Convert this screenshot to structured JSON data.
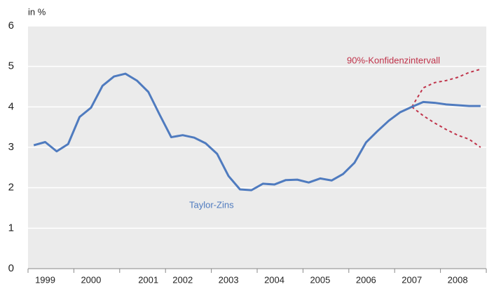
{
  "chart_data": {
    "type": "line",
    "y_unit_label": "in %",
    "categories": [
      null,
      "1999",
      null,
      null,
      null,
      "2000",
      null,
      null,
      null,
      null,
      "2001",
      null,
      null,
      "2002",
      null,
      null,
      null,
      "2003",
      null,
      null,
      null,
      "2004",
      null,
      null,
      null,
      "2005",
      null,
      null,
      null,
      "2006",
      null,
      null,
      null,
      "2007",
      null,
      null,
      null,
      "2008",
      null,
      null
    ],
    "series": [
      {
        "name": "Taylor-Zins",
        "color": "#4f7bbf",
        "values": [
          3.05,
          3.13,
          2.9,
          3.08,
          3.75,
          3.98,
          4.52,
          4.75,
          4.82,
          4.65,
          4.37,
          3.8,
          3.25,
          3.3,
          3.24,
          3.1,
          2.84,
          2.29,
          1.96,
          1.94,
          2.1,
          2.08,
          2.19,
          2.2,
          2.13,
          2.23,
          2.18,
          2.34,
          2.62,
          3.12,
          3.4,
          3.66,
          3.87,
          4.0,
          4.12,
          4.1,
          4.06,
          4.04,
          4.02,
          4.02
        ]
      }
    ],
    "confidence_interval": {
      "label": "90%-Konfidenzintervall",
      "color": "#c0334a",
      "upper": [
        null,
        null,
        null,
        null,
        null,
        null,
        null,
        null,
        null,
        null,
        null,
        null,
        null,
        null,
        null,
        null,
        null,
        null,
        null,
        null,
        null,
        null,
        null,
        null,
        null,
        null,
        null,
        null,
        null,
        null,
        null,
        null,
        null,
        4.0,
        4.47,
        4.6,
        4.65,
        4.73,
        4.85,
        4.93
      ],
      "lower": [
        null,
        null,
        null,
        null,
        null,
        null,
        null,
        null,
        null,
        null,
        null,
        null,
        null,
        null,
        null,
        null,
        null,
        null,
        null,
        null,
        null,
        null,
        null,
        null,
        null,
        null,
        null,
        null,
        null,
        null,
        null,
        null,
        null,
        4.0,
        3.78,
        3.6,
        3.44,
        3.3,
        3.2,
        3.0
      ]
    },
    "ylim": [
      0,
      6
    ],
    "yticks": [
      0,
      1,
      2,
      3,
      4,
      5,
      6
    ],
    "grid": true
  }
}
